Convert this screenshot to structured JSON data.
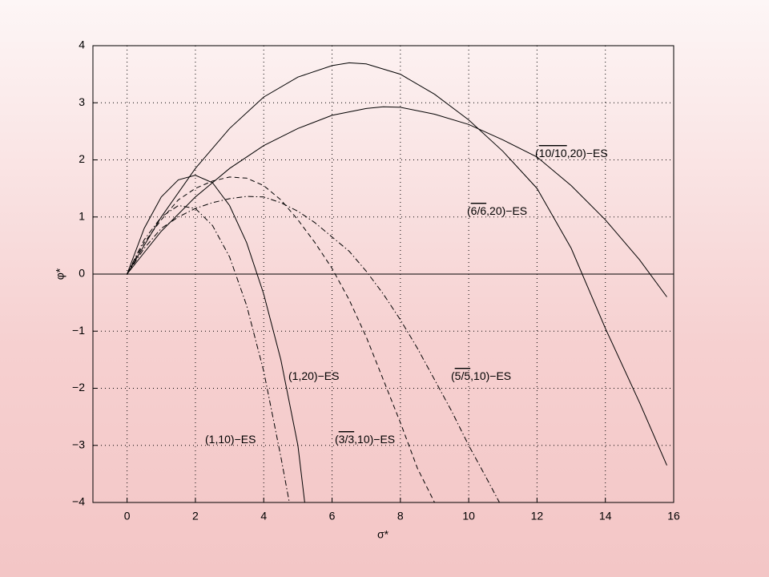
{
  "chart_data": {
    "type": "line",
    "xlabel": "σ*",
    "ylabel": "φ*",
    "xlim": [
      -1,
      16
    ],
    "ylim": [
      -4,
      4
    ],
    "xticks": [
      0,
      2,
      4,
      6,
      8,
      10,
      12,
      14,
      16
    ],
    "yticks": [
      {
        "value": -4,
        "label": "−4"
      },
      {
        "value": -3,
        "label": "−3"
      },
      {
        "value": -2,
        "label": "−2"
      },
      {
        "value": -1,
        "label": "−1"
      },
      0,
      1,
      2,
      3,
      4
    ],
    "grid": true,
    "series": [
      {
        "name": "(1,10)−ES",
        "color": "#000000",
        "dash": "solid",
        "x": [
          0,
          0.5,
          1,
          1.5,
          2,
          2.5,
          3,
          3.5,
          4,
          4.5,
          5,
          5.2
        ],
        "values": [
          0,
          0.8,
          1.35,
          1.65,
          1.73,
          1.6,
          1.2,
          0.55,
          -0.35,
          -1.5,
          -3.0,
          -4.0
        ]
      },
      {
        "name": "(1,20)−ES",
        "color": "#000000",
        "dash": "dashdot",
        "x": [
          0,
          0.5,
          1,
          1.5,
          2,
          2.5,
          3,
          3.5,
          4,
          4.5,
          4.75
        ],
        "values": [
          0,
          0.6,
          1.0,
          1.2,
          1.15,
          0.85,
          0.3,
          -0.55,
          -1.7,
          -3.2,
          -4.0
        ]
      },
      {
        "name": "(3/3,10)−ES",
        "color": "#000000",
        "dash": "dashed",
        "x": [
          0,
          0.5,
          1,
          1.5,
          2,
          2.5,
          3,
          3.5,
          4,
          4.5,
          5,
          5.5,
          6,
          6.5,
          7,
          7.5,
          8,
          8.5,
          9
        ],
        "values": [
          0,
          0.55,
          0.95,
          1.3,
          1.5,
          1.63,
          1.7,
          1.68,
          1.55,
          1.3,
          0.95,
          0.55,
          0.1,
          -0.45,
          -1.1,
          -1.85,
          -2.6,
          -3.4,
          -4.0
        ]
      },
      {
        "name": "(5/5,10)−ES",
        "color": "#000000",
        "dash": "dashdot",
        "x": [
          0,
          0.5,
          1,
          1.5,
          2,
          2.5,
          3,
          3.5,
          4,
          4.5,
          5,
          5.5,
          6,
          6.5,
          7,
          7.5,
          8,
          8.5,
          9,
          9.5,
          10,
          10.5,
          10.9
        ],
        "values": [
          0,
          0.45,
          0.8,
          1.0,
          1.15,
          1.25,
          1.32,
          1.36,
          1.35,
          1.25,
          1.1,
          0.9,
          0.65,
          0.4,
          0.05,
          -0.35,
          -0.8,
          -1.3,
          -1.85,
          -2.4,
          -3.0,
          -3.55,
          -4.0
        ]
      },
      {
        "name": "(6/6,20)−ES",
        "color": "#000000",
        "dash": "solid",
        "x": [
          0,
          1,
          2,
          3,
          4,
          5,
          6,
          6.5,
          7,
          8,
          9,
          10,
          11,
          12,
          13,
          14,
          15,
          15.8
        ],
        "values": [
          0,
          1.0,
          1.85,
          2.55,
          3.1,
          3.45,
          3.65,
          3.7,
          3.68,
          3.5,
          3.15,
          2.7,
          2.15,
          1.5,
          0.45,
          -0.95,
          -2.25,
          -3.35
        ]
      },
      {
        "name": "(10/10,20)−ES",
        "color": "#000000",
        "dash": "solid",
        "x": [
          0,
          1,
          2,
          3,
          4,
          5,
          6,
          7,
          7.5,
          8,
          9,
          10,
          11,
          12,
          13,
          14,
          15,
          15.8
        ],
        "values": [
          0,
          0.75,
          1.35,
          1.85,
          2.25,
          2.55,
          2.78,
          2.9,
          2.93,
          2.92,
          2.8,
          2.62,
          2.35,
          2.05,
          1.55,
          0.95,
          0.25,
          -0.4
        ]
      }
    ],
    "annotations": [
      {
        "pre": "(",
        "bar": "10/10",
        "post": ",20)−ES"
      },
      {
        "pre": "(",
        "bar": "6/6",
        "post": ",20)−ES"
      },
      {
        "pre": "(1,20)−ES",
        "bar": null,
        "post": null
      },
      {
        "pre": "(",
        "bar": "5/5",
        "post": ",10)−ES"
      },
      {
        "pre": "(1,10)−ES",
        "bar": null,
        "post": null
      },
      {
        "pre": "(",
        "bar": "3/3",
        "post": ",10)−ES"
      }
    ]
  }
}
